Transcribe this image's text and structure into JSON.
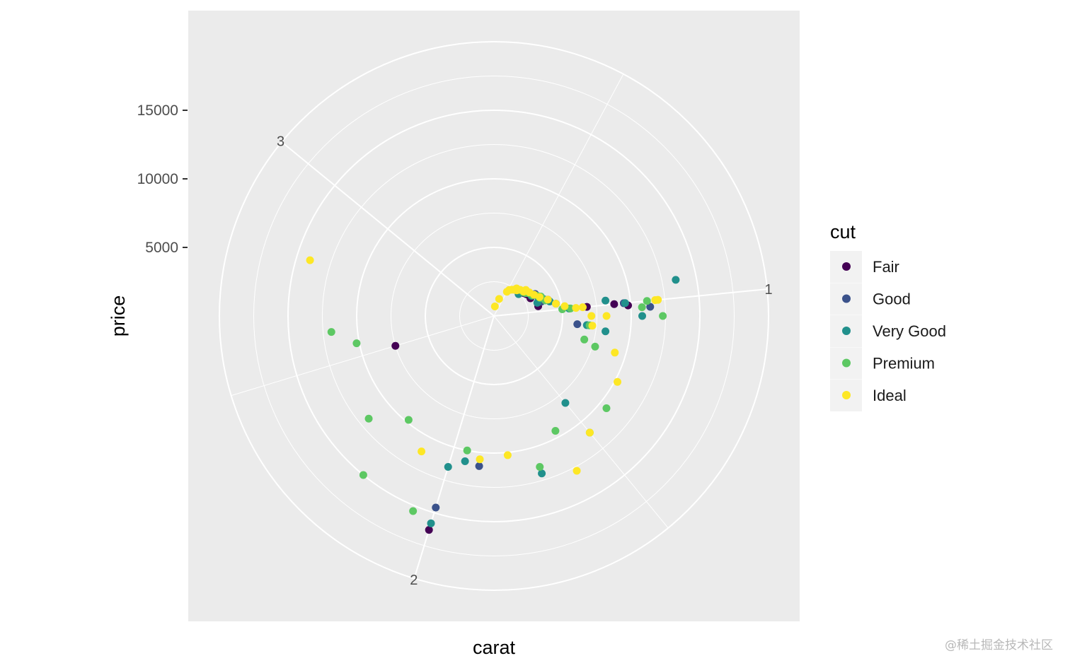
{
  "chart_data": {
    "type": "scatter",
    "coord": "polar",
    "theta_variable": "carat",
    "r_variable": "price",
    "title": "",
    "xlabel": "carat",
    "ylabel": "price",
    "theta_range": [
      0.25,
      3.45
    ],
    "theta_ticks": [
      1,
      2,
      3
    ],
    "r_range": [
      0,
      20000
    ],
    "r_ticks": [
      5000,
      10000,
      15000
    ],
    "grid": true,
    "panel_background": "#ebebeb",
    "legend": {
      "title": "cut",
      "position": "right"
    },
    "series": [
      {
        "name": "Fair",
        "color": "#440154",
        "points": [
          [
            0.7,
            2700
          ],
          [
            0.72,
            2750
          ],
          [
            0.75,
            2850
          ],
          [
            0.76,
            2900
          ],
          [
            0.7,
            2780
          ],
          [
            0.9,
            4100
          ],
          [
            0.94,
            3300
          ],
          [
            1.0,
            6800
          ],
          [
            1.0,
            8800
          ],
          [
            1.01,
            9800
          ],
          [
            2.0,
            16300
          ],
          [
            2.5,
            7500
          ],
          [
            0.82,
            2950
          ]
        ]
      },
      {
        "name": "Good",
        "color": "#3b528b",
        "points": [
          [
            0.7,
            2760
          ],
          [
            0.8,
            3400
          ],
          [
            0.9,
            3600
          ],
          [
            0.95,
            4600
          ],
          [
            1.0,
            9500
          ],
          [
            1.02,
            11400
          ],
          [
            1.9,
            11000
          ],
          [
            2.0,
            14600
          ],
          [
            0.85,
            3500
          ],
          [
            1.1,
            6100
          ]
        ]
      },
      {
        "name": "Very Good",
        "color": "#21908c",
        "points": [
          [
            0.72,
            2800
          ],
          [
            0.8,
            3100
          ],
          [
            0.9,
            3300
          ],
          [
            0.9,
            4000
          ],
          [
            0.92,
            4200
          ],
          [
            1.0,
            5500
          ],
          [
            1.1,
            6800
          ],
          [
            1.0,
            9600
          ],
          [
            1.05,
            10800
          ],
          [
            0.95,
            13500
          ],
          [
            1.5,
            8200
          ],
          [
            1.7,
            12000
          ],
          [
            2.0,
            11500
          ],
          [
            2.0,
            15800
          ],
          [
            1.95,
            10800
          ],
          [
            0.68,
            2400
          ],
          [
            1.12,
            8200
          ],
          [
            0.98,
            8200
          ],
          [
            0.88,
            3800
          ]
        ]
      },
      {
        "name": "Premium",
        "color": "#5dc863",
        "points": [
          [
            0.7,
            2750
          ],
          [
            0.73,
            2850
          ],
          [
            0.75,
            3000
          ],
          [
            0.8,
            3200
          ],
          [
            0.83,
            3500
          ],
          [
            0.85,
            3700
          ],
          [
            0.9,
            3900
          ],
          [
            1.0,
            5000
          ],
          [
            1.0,
            5600
          ],
          [
            1.1,
            7000
          ],
          [
            1.2,
            7700
          ],
          [
            1.0,
            11200
          ],
          [
            1.4,
            10600
          ],
          [
            1.5,
            11000
          ],
          [
            1.6,
            9500
          ],
          [
            1.7,
            11500
          ],
          [
            2.05,
            15400
          ],
          [
            2.3,
            11800
          ],
          [
            2.6,
            11900
          ],
          [
            2.55,
            10200
          ],
          [
            2.2,
            15000
          ],
          [
            1.95,
            10000
          ],
          [
            1.05,
            12300
          ],
          [
            1.02,
            10800
          ],
          [
            2.2,
            9800
          ],
          [
            1.18,
            6800
          ],
          [
            0.78,
            3150
          ],
          [
            0.86,
            3600
          ]
        ]
      },
      {
        "name": "Ideal",
        "color": "#fde725",
        "points": [
          [
            0.3,
            700
          ],
          [
            0.4,
            1300
          ],
          [
            0.5,
            2000
          ],
          [
            0.55,
            2300
          ],
          [
            0.6,
            2600
          ],
          [
            0.65,
            2700
          ],
          [
            0.7,
            2800
          ],
          [
            0.7,
            3000
          ],
          [
            0.75,
            3100
          ],
          [
            0.8,
            3300
          ],
          [
            0.85,
            3600
          ],
          [
            0.9,
            4100
          ],
          [
            0.95,
            4600
          ],
          [
            0.98,
            5200
          ],
          [
            1.0,
            6000
          ],
          [
            1.0,
            6500
          ],
          [
            1.1,
            7200
          ],
          [
            1.05,
            8200
          ],
          [
            1.2,
            9200
          ],
          [
            1.3,
            10200
          ],
          [
            1.5,
            11000
          ],
          [
            1.8,
            10200
          ],
          [
            2.1,
            11200
          ],
          [
            2.8,
            14000
          ],
          [
            1.6,
            12800
          ],
          [
            1.0,
            12000
          ],
          [
            1.05,
            7100
          ],
          [
            1.0,
            11800
          ],
          [
            1.9,
            10500
          ],
          [
            0.62,
            2500
          ],
          [
            0.52,
            2200
          ],
          [
            0.58,
            2400
          ]
        ]
      }
    ]
  }
}
